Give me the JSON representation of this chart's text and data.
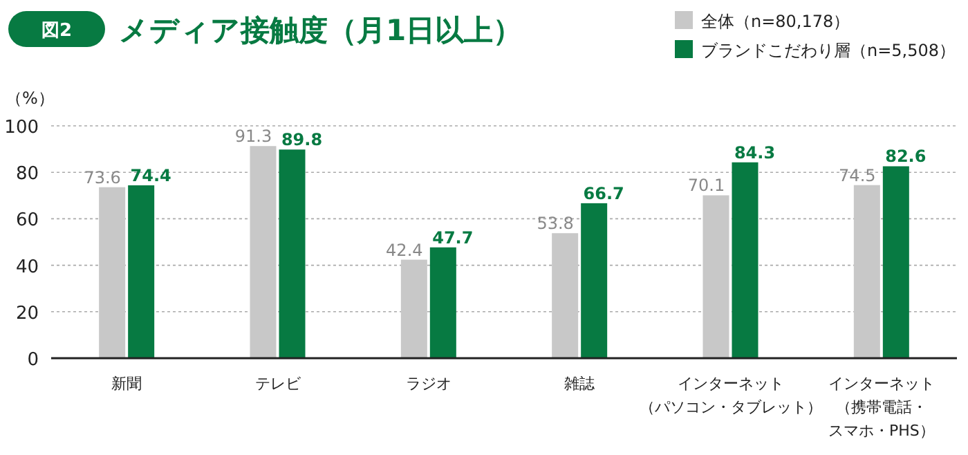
{
  "chart_data": {
    "type": "bar",
    "title": "メディア接触度（月1日以上）",
    "annotations": [
      "図2"
    ],
    "ylabel": "（%）",
    "categories": [
      "新聞",
      "テレビ",
      "ラジオ",
      "雑誌",
      "インターネット（パソコン・タブレット）",
      "インターネット（携帯電話・スマホ・PHS）"
    ],
    "series": [
      {
        "name": "全体（n=80,178）",
        "color": "#c8c8c8",
        "values": [
          73.6,
          91.3,
          42.4,
          53.8,
          70.1,
          74.5
        ]
      },
      {
        "name": "ブランドこだわり層（n=5,508）",
        "color": "#077a42",
        "values": [
          74.4,
          89.8,
          47.7,
          66.7,
          84.3,
          82.6
        ]
      }
    ],
    "ylim": [
      0,
      100
    ],
    "yticks": [
      0,
      20,
      40,
      60,
      80,
      100
    ],
    "grid": "y",
    "legend": "top right",
    "data_labels": true
  }
}
